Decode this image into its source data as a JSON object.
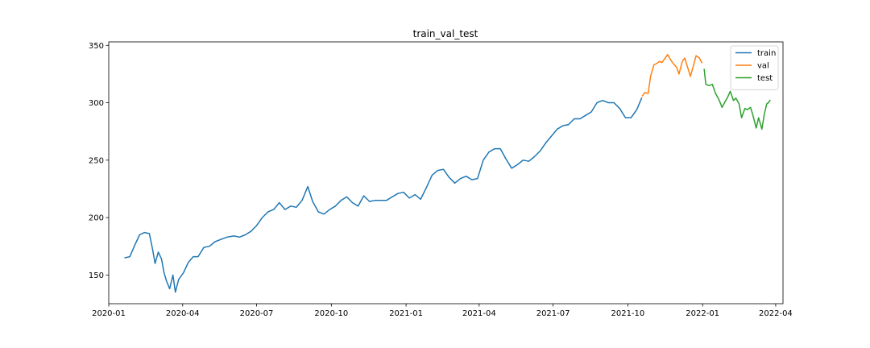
{
  "chart_data": {
    "type": "line",
    "title": "train_val_test",
    "xlabel": "",
    "ylabel": "",
    "x_axis": "date",
    "xlim": [
      "2020-01-01",
      "2022-04-10"
    ],
    "ylim": [
      125,
      353
    ],
    "x_ticks": [
      {
        "date": "2020-01-01",
        "label": "2020-01"
      },
      {
        "date": "2020-04-01",
        "label": "2020-04"
      },
      {
        "date": "2020-07-01",
        "label": "2020-07"
      },
      {
        "date": "2020-10-01",
        "label": "2020-10"
      },
      {
        "date": "2021-01-01",
        "label": "2021-01"
      },
      {
        "date": "2021-04-01",
        "label": "2021-04"
      },
      {
        "date": "2021-07-01",
        "label": "2021-07"
      },
      {
        "date": "2021-10-01",
        "label": "2021-10"
      },
      {
        "date": "2022-01-01",
        "label": "2022-01"
      },
      {
        "date": "2022-04-01",
        "label": "2022-04"
      }
    ],
    "y_ticks": [
      150,
      200,
      250,
      300,
      350
    ],
    "grid": false,
    "legend": "top-right",
    "series": [
      {
        "name": "train",
        "color": "#1f77b4",
        "points": [
          [
            "2020-01-21",
            165
          ],
          [
            "2020-01-27",
            166
          ],
          [
            "2020-02-02",
            176
          ],
          [
            "2020-02-08",
            185
          ],
          [
            "2020-02-14",
            187
          ],
          [
            "2020-02-20",
            186
          ],
          [
            "2020-02-24",
            172
          ],
          [
            "2020-02-27",
            160
          ],
          [
            "2020-03-02",
            170
          ],
          [
            "2020-03-06",
            164
          ],
          [
            "2020-03-09",
            152
          ],
          [
            "2020-03-12",
            145
          ],
          [
            "2020-03-16",
            138
          ],
          [
            "2020-03-20",
            150
          ],
          [
            "2020-03-23",
            135
          ],
          [
            "2020-03-27",
            146
          ],
          [
            "2020-04-02",
            152
          ],
          [
            "2020-04-08",
            161
          ],
          [
            "2020-04-14",
            166
          ],
          [
            "2020-04-20",
            166
          ],
          [
            "2020-04-27",
            174
          ],
          [
            "2020-05-04",
            175
          ],
          [
            "2020-05-11",
            179
          ],
          [
            "2020-05-18",
            181
          ],
          [
            "2020-05-26",
            183
          ],
          [
            "2020-06-03",
            184
          ],
          [
            "2020-06-10",
            183
          ],
          [
            "2020-06-17",
            185
          ],
          [
            "2020-06-24",
            188
          ],
          [
            "2020-07-01",
            193
          ],
          [
            "2020-07-08",
            200
          ],
          [
            "2020-07-15",
            205
          ],
          [
            "2020-07-22",
            207
          ],
          [
            "2020-07-29",
            213
          ],
          [
            "2020-08-05",
            207
          ],
          [
            "2020-08-12",
            210
          ],
          [
            "2020-08-19",
            209
          ],
          [
            "2020-08-26",
            215
          ],
          [
            "2020-09-02",
            227
          ],
          [
            "2020-09-08",
            214
          ],
          [
            "2020-09-15",
            205
          ],
          [
            "2020-09-22",
            203
          ],
          [
            "2020-09-29",
            207
          ],
          [
            "2020-10-06",
            210
          ],
          [
            "2020-10-13",
            215
          ],
          [
            "2020-10-20",
            218
          ],
          [
            "2020-10-27",
            213
          ],
          [
            "2020-11-03",
            210
          ],
          [
            "2020-11-10",
            219
          ],
          [
            "2020-11-17",
            214
          ],
          [
            "2020-11-24",
            215
          ],
          [
            "2020-12-01",
            215
          ],
          [
            "2020-12-08",
            215
          ],
          [
            "2020-12-15",
            218
          ],
          [
            "2020-12-22",
            221
          ],
          [
            "2020-12-29",
            222
          ],
          [
            "2021-01-05",
            217
          ],
          [
            "2021-01-12",
            220
          ],
          [
            "2021-01-19",
            216
          ],
          [
            "2021-01-26",
            226
          ],
          [
            "2021-02-02",
            237
          ],
          [
            "2021-02-09",
            241
          ],
          [
            "2021-02-16",
            242
          ],
          [
            "2021-02-23",
            235
          ],
          [
            "2021-03-02",
            230
          ],
          [
            "2021-03-09",
            234
          ],
          [
            "2021-03-16",
            236
          ],
          [
            "2021-03-23",
            233
          ],
          [
            "2021-03-30",
            234
          ],
          [
            "2021-04-06",
            250
          ],
          [
            "2021-04-13",
            257
          ],
          [
            "2021-04-20",
            260
          ],
          [
            "2021-04-27",
            260
          ],
          [
            "2021-05-04",
            251
          ],
          [
            "2021-05-11",
            243
          ],
          [
            "2021-05-18",
            246
          ],
          [
            "2021-05-25",
            250
          ],
          [
            "2021-06-01",
            249
          ],
          [
            "2021-06-08",
            253
          ],
          [
            "2021-06-15",
            258
          ],
          [
            "2021-06-22",
            265
          ],
          [
            "2021-06-29",
            271
          ],
          [
            "2021-07-06",
            277
          ],
          [
            "2021-07-13",
            280
          ],
          [
            "2021-07-20",
            281
          ],
          [
            "2021-07-27",
            286
          ],
          [
            "2021-08-03",
            286
          ],
          [
            "2021-08-10",
            289
          ],
          [
            "2021-08-17",
            292
          ],
          [
            "2021-08-24",
            300
          ],
          [
            "2021-08-31",
            302
          ],
          [
            "2021-09-07",
            300
          ],
          [
            "2021-09-14",
            300
          ],
          [
            "2021-09-21",
            295
          ],
          [
            "2021-09-28",
            287
          ],
          [
            "2021-10-05",
            287
          ],
          [
            "2021-10-12",
            294
          ],
          [
            "2021-10-18",
            304
          ]
        ]
      },
      {
        "name": "val",
        "color": "#ff7f0e",
        "points": [
          [
            "2021-10-19",
            306
          ],
          [
            "2021-10-22",
            309
          ],
          [
            "2021-10-26",
            308
          ],
          [
            "2021-10-29",
            323
          ],
          [
            "2021-11-02",
            333
          ],
          [
            "2021-11-05",
            334
          ],
          [
            "2021-11-09",
            336
          ],
          [
            "2021-11-12",
            335
          ],
          [
            "2021-11-16",
            339
          ],
          [
            "2021-11-19",
            342
          ],
          [
            "2021-11-23",
            337
          ],
          [
            "2021-11-26",
            334
          ],
          [
            "2021-11-30",
            331
          ],
          [
            "2021-12-03",
            325
          ],
          [
            "2021-12-07",
            336
          ],
          [
            "2021-12-10",
            339
          ],
          [
            "2021-12-14",
            330
          ],
          [
            "2021-12-17",
            323
          ],
          [
            "2021-12-21",
            333
          ],
          [
            "2021-12-24",
            341
          ],
          [
            "2021-12-28",
            339
          ],
          [
            "2021-12-31",
            335
          ]
        ]
      },
      {
        "name": "test",
        "color": "#2ca02c",
        "points": [
          [
            "2022-01-03",
            329
          ],
          [
            "2022-01-05",
            316
          ],
          [
            "2022-01-09",
            315
          ],
          [
            "2022-01-13",
            316
          ],
          [
            "2022-01-17",
            308
          ],
          [
            "2022-01-21",
            303
          ],
          [
            "2022-01-25",
            296
          ],
          [
            "2022-01-28",
            300
          ],
          [
            "2022-02-01",
            305
          ],
          [
            "2022-02-04",
            310
          ],
          [
            "2022-02-08",
            302
          ],
          [
            "2022-02-11",
            304
          ],
          [
            "2022-02-15",
            299
          ],
          [
            "2022-02-18",
            287
          ],
          [
            "2022-02-22",
            295
          ],
          [
            "2022-02-25",
            294
          ],
          [
            "2022-03-01",
            296
          ],
          [
            "2022-03-04",
            289
          ],
          [
            "2022-03-08",
            278
          ],
          [
            "2022-03-11",
            287
          ],
          [
            "2022-03-15",
            277
          ],
          [
            "2022-03-18",
            290
          ],
          [
            "2022-03-21",
            299
          ],
          [
            "2022-03-23",
            300
          ],
          [
            "2022-03-25",
            302
          ]
        ]
      }
    ]
  }
}
